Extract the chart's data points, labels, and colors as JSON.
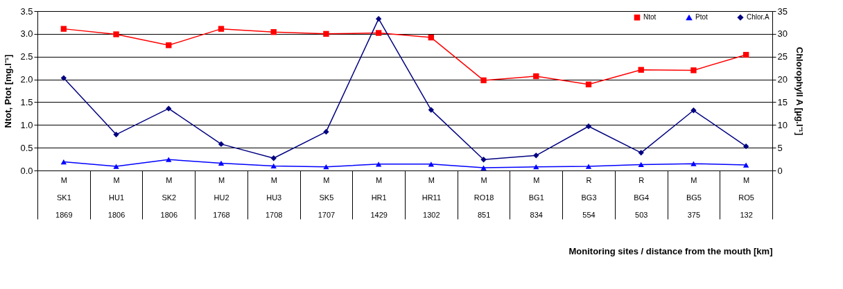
{
  "chart_data": {
    "type": "line",
    "categories": [
      "M\nSK1\n1869",
      "M\nHU1\n1806",
      "M\nSK2\n1806",
      "M\nHU2\n1768",
      "M\nHU3\n1708",
      "M\nSK5\n1707",
      "M\nHR1\n1429",
      "M\nHR11\n1302",
      "M\nRO18\n851",
      "M\nBG1\n834",
      "R\nBG3\n554",
      "R\nBG4\n503",
      "M\nBG5\n375",
      "M\nRO5\n132"
    ],
    "series": [
      {
        "name": "Ntot",
        "color": "#ff0000",
        "marker": "square",
        "values": [
          3.11,
          2.99,
          2.75,
          3.11,
          3.04,
          3.0,
          3.02,
          2.92,
          1.98,
          2.07,
          1.89,
          2.21,
          2.2,
          2.54
        ]
      },
      {
        "name": "Ptot",
        "color": "#0000ff",
        "marker": "triangle",
        "values": [
          0.19,
          0.09,
          0.24,
          0.16,
          0.1,
          0.08,
          0.14,
          0.14,
          0.06,
          0.08,
          0.09,
          0.13,
          0.15,
          0.12
        ]
      },
      {
        "name": "Chlor.A",
        "color": "#000080",
        "marker": "diamond",
        "axis": "y2",
        "values": [
          20.3,
          7.9,
          13.6,
          5.8,
          2.7,
          8.5,
          33.3,
          13.3,
          2.4,
          3.3,
          9.7,
          3.9,
          13.2,
          5.3
        ]
      }
    ],
    "xlabel": "Monitoring sites / distance from the mouth [km]",
    "ylabel": "Ntot, Ptot [mg.l⁻¹]",
    "y2label": "Chlorophyll A [µg.l⁻¹]",
    "ylim": [
      0,
      3.5
    ],
    "yticks": [
      {
        "value": 0,
        "label": "0.0"
      },
      {
        "value": 0.5,
        "label": "0.5"
      },
      {
        "value": 1,
        "label": "1.0"
      },
      {
        "value": 1.5,
        "label": "1.5"
      },
      {
        "value": 2,
        "label": "2.0"
      },
      {
        "value": 2.5,
        "label": "2.5"
      },
      {
        "value": 3,
        "label": "3.0"
      },
      {
        "value": 3.5,
        "label": "3.5"
      }
    ],
    "y2lim": [
      0,
      35
    ],
    "y2ticks": [
      0,
      5,
      10,
      15,
      20,
      25,
      30,
      35
    ],
    "grid": "y",
    "legend": "top right",
    "line_style": "solid"
  }
}
